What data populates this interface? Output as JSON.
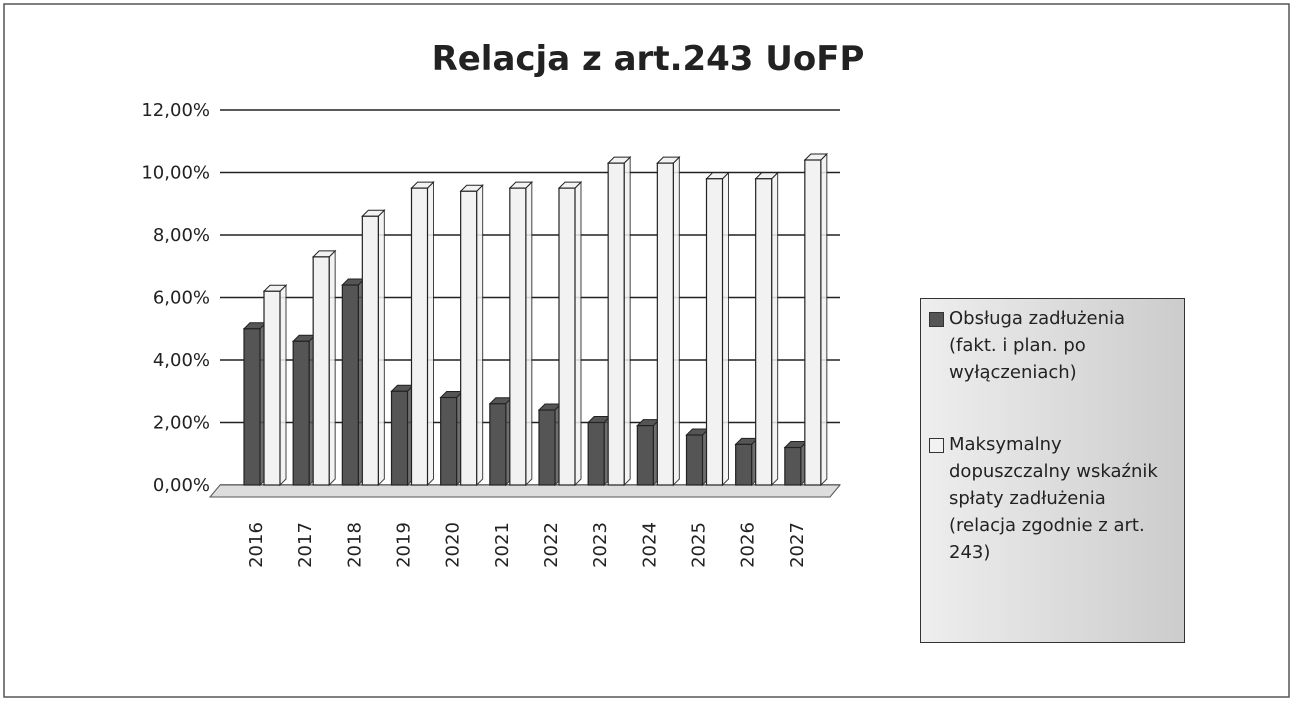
{
  "chart_data": {
    "type": "bar",
    "title": "Relacja z art.243 UoFP",
    "categories": [
      "2016",
      "2017",
      "2018",
      "2019",
      "2020",
      "2021",
      "2022",
      "2023",
      "2024",
      "2025",
      "2026",
      "2027"
    ],
    "series": [
      {
        "name": "Obsługa zadłużenia (fakt. i plan. po wyłączeniach)",
        "color": "#555555",
        "values": [
          5.0,
          4.6,
          6.4,
          3.0,
          2.8,
          2.6,
          2.4,
          2.0,
          1.9,
          1.6,
          1.3,
          1.2
        ]
      },
      {
        "name": "Maksymalny dopuszczalny wskaźnik spłaty zadłużenia (relacja zgodnie z art. 243)",
        "color": "#f2f2f2",
        "values": [
          6.2,
          7.3,
          8.6,
          9.5,
          9.4,
          9.5,
          9.5,
          10.3,
          10.3,
          9.8,
          9.8,
          10.4
        ]
      }
    ],
    "ylim": [
      0,
      12
    ],
    "yticks": [
      {
        "value": 0,
        "label": "0,00%"
      },
      {
        "value": 2,
        "label": "2,00%"
      },
      {
        "value": 4,
        "label": "4,00%"
      },
      {
        "value": 6,
        "label": "6,00%"
      },
      {
        "value": 8,
        "label": "8,00%"
      },
      {
        "value": 10,
        "label": "10,00%"
      },
      {
        "value": 12,
        "label": "12,00%"
      }
    ],
    "grid": true,
    "legend": "right"
  }
}
